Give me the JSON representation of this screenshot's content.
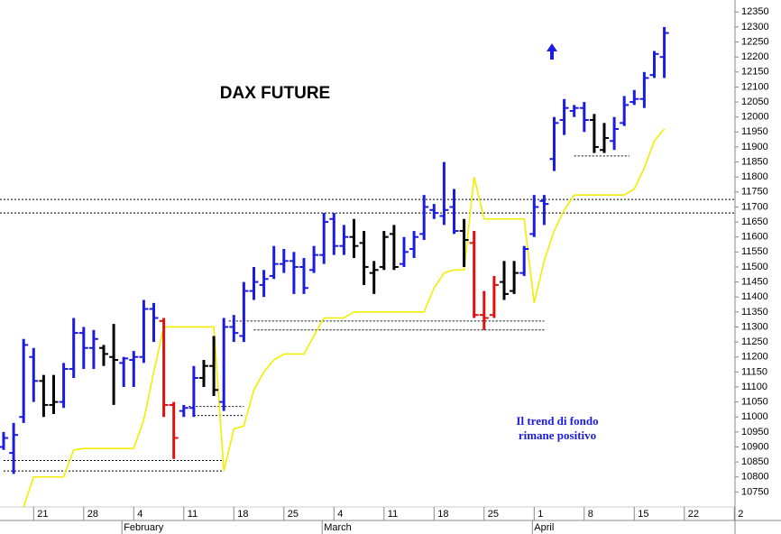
{
  "chart_data": {
    "type": "ohlc",
    "title": "DAX FUTURE",
    "annotation": [
      "Il trend di fondo",
      "rimane positivo"
    ],
    "categories": [
      null,
      null,
      null,
      "21",
      null,
      null,
      null,
      null,
      "28",
      null,
      null,
      null,
      null,
      "4",
      null,
      null,
      null,
      null,
      "11",
      null,
      null,
      null,
      null,
      "18",
      null,
      null,
      null,
      null,
      "25",
      null,
      null,
      null,
      null,
      "4",
      null,
      null,
      null,
      null,
      "11",
      null,
      null,
      null,
      null,
      "18",
      null,
      null,
      null,
      null,
      "25",
      null,
      null,
      null,
      null,
      "1",
      null,
      null,
      null,
      null,
      "8",
      null,
      null,
      null,
      null,
      "15",
      null,
      null,
      null,
      null,
      "22",
      null,
      null,
      null,
      null,
      "2"
    ],
    "months": [
      {
        "label": "February",
        "at": 12
      },
      {
        "label": "March",
        "at": 32
      },
      {
        "label": "April",
        "at": 53
      }
    ],
    "ohlc": {
      "open": [
        10900,
        10880,
        11000,
        11200,
        11120,
        11040,
        11050,
        11160,
        11280,
        11230,
        11230,
        11200,
        11180,
        11190,
        11200,
        11360,
        11320,
        11040,
        11020,
        11030,
        11130,
        11170,
        11050,
        11300,
        11270,
        11420,
        11440,
        11470,
        11510,
        11520,
        11500,
        11490,
        11540,
        11660,
        11570,
        11600,
        11580,
        11480,
        11500,
        11610,
        11510,
        11560,
        11610,
        11690,
        11670,
        11700,
        11620,
        11580,
        11340,
        11340,
        11450,
        11420,
        11480,
        11610,
        11720,
        11860,
        11990,
        12020,
        12030,
        11990,
        11890,
        11920,
        11980,
        12050,
        12060,
        12140,
        12200,
        null,
        null,
        null,
        null,
        null,
        null,
        null
      ],
      "high": [
        10950,
        10980,
        11260,
        11230,
        11140,
        11140,
        11180,
        11330,
        11300,
        11290,
        11240,
        11310,
        11200,
        11220,
        11390,
        11380,
        11330,
        11050,
        11040,
        11170,
        11190,
        11270,
        11330,
        11340,
        11450,
        11500,
        11490,
        11570,
        11560,
        11550,
        11530,
        11570,
        11680,
        11680,
        11640,
        11660,
        11620,
        11520,
        11620,
        11640,
        11600,
        11620,
        11740,
        11710,
        11850,
        11760,
        11660,
        11620,
        11420,
        11470,
        11520,
        11520,
        11570,
        11740,
        11740,
        12000,
        12060,
        12040,
        12050,
        12010,
        11980,
        12000,
        12070,
        12090,
        12150,
        12220,
        12300,
        null,
        null,
        null,
        null,
        null,
        null,
        null
      ],
      "low": [
        10890,
        10810,
        10980,
        11050,
        11000,
        11010,
        11030,
        11130,
        11160,
        11160,
        11170,
        11040,
        11100,
        11100,
        11180,
        11250,
        11000,
        10860,
        11000,
        11000,
        11100,
        11070,
        11020,
        11250,
        11250,
        11390,
        11400,
        11460,
        11480,
        11410,
        11410,
        11480,
        11510,
        11540,
        11540,
        11530,
        11440,
        11410,
        11490,
        11490,
        11500,
        11530,
        11590,
        11660,
        11640,
        11610,
        11500,
        11330,
        11290,
        11330,
        11390,
        11410,
        11470,
        11600,
        11640,
        11820,
        11940,
        12000,
        11950,
        11880,
        11880,
        11890,
        11970,
        12040,
        12030,
        12130,
        12130,
        null,
        null,
        null,
        null,
        null,
        null,
        null
      ],
      "close": [
        10930,
        10940,
        11240,
        11120,
        11040,
        11050,
        11160,
        11280,
        11230,
        11260,
        11210,
        11190,
        11195,
        11200,
        11360,
        11330,
        11040,
        10930,
        11030,
        11130,
        11170,
        11090,
        11300,
        11280,
        11420,
        11450,
        11460,
        11510,
        11520,
        11500,
        11430,
        11540,
        11650,
        11570,
        11600,
        11570,
        11500,
        11490,
        11600,
        11500,
        11550,
        11600,
        11700,
        11680,
        11690,
        11620,
        11590,
        11340,
        11330,
        11440,
        11410,
        11480,
        11560,
        11700,
        11710,
        11980,
        12030,
        12030,
        11990,
        11900,
        11930,
        11960,
        12040,
        12060,
        12130,
        12210,
        12280,
        null,
        null,
        null,
        null,
        null,
        null,
        null
      ],
      "colors": [
        "#1c1ce0",
        "#1c1ce0",
        "#1c1ce0",
        "#1c1ce0",
        "#000000",
        "#000000",
        "#1c1ce0",
        "#1c1ce0",
        "#1c1ce0",
        "#1c1ce0",
        "#000000",
        "#000000",
        "#1c1ce0",
        "#1c1ce0",
        "#1c1ce0",
        "#1c1ce0",
        "#e01010",
        "#e01010",
        "#1c1ce0",
        "#1c1ce0",
        "#000000",
        "#000000",
        "#1c1ce0",
        "#1c1ce0",
        "#1c1ce0",
        "#1c1ce0",
        "#1c1ce0",
        "#1c1ce0",
        "#1c1ce0",
        "#1c1ce0",
        "#1c1ce0",
        "#1c1ce0",
        "#1c1ce0",
        "#1c1ce0",
        "#1c1ce0",
        "#000000",
        "#000000",
        "#000000",
        "#000000",
        "#000000",
        "#1c1ce0",
        "#1c1ce0",
        "#1c1ce0",
        "#1c1ce0",
        "#1c1ce0",
        "#1c1ce0",
        "#000000",
        "#e01010",
        "#e01010",
        "#e01010",
        "#000000",
        "#000000",
        "#1c1ce0",
        "#1c1ce0",
        "#1c1ce0",
        "#1c1ce0",
        "#1c1ce0",
        "#1c1ce0",
        "#1c1ce0",
        "#000000",
        "#000000",
        "#1c1ce0",
        "#1c1ce0",
        "#1c1ce0",
        "#1c1ce0",
        "#1c1ce0",
        "#1c1ce0",
        null,
        null,
        null,
        null,
        null,
        null,
        null
      ]
    },
    "line": {
      "color": "#f2ee00",
      "values": [
        null,
        null,
        10700,
        10800,
        10800,
        10800,
        10800,
        10890,
        10895,
        10895,
        10895,
        10895,
        10895,
        10895,
        10990,
        11150,
        11300,
        11300,
        11300,
        11300,
        11300,
        11300,
        10820,
        10960,
        10970,
        11090,
        11150,
        11190,
        11210,
        11210,
        11210,
        11270,
        11330,
        11330,
        11330,
        11350,
        11350,
        11350,
        11350,
        11350,
        11350,
        11350,
        11350,
        11430,
        11480,
        11490,
        11490,
        11800,
        11660,
        11660,
        11660,
        11660,
        11660,
        11380,
        11520,
        11620,
        11690,
        11740,
        11740,
        11740,
        11740,
        11740,
        11740,
        11760,
        11830,
        11920,
        11960,
        null,
        null,
        null,
        null,
        null,
        null,
        null
      ]
    },
    "levels": [
      {
        "value": 11725
      },
      {
        "value": 11680
      },
      {
        "value": 11320,
        "from": 22.5,
        "to": 54
      },
      {
        "value": 11290,
        "from": 25,
        "to": 54
      },
      {
        "value": 11035,
        "from": 18.5,
        "to": 24
      },
      {
        "value": 11005,
        "from": 19,
        "to": 24
      },
      {
        "value": 10855,
        "from": 0,
        "to": 22
      },
      {
        "value": 10820,
        "from": 0,
        "to": 22
      },
      {
        "value": 11870,
        "from": 57,
        "to": 62.5
      }
    ],
    "ylim": [
      10700,
      12390
    ],
    "yticks": [
      10750,
      10800,
      10850,
      10900,
      10950,
      11000,
      11050,
      11100,
      11150,
      11200,
      11250,
      11300,
      11350,
      11400,
      11450,
      11500,
      11550,
      11600,
      11650,
      11700,
      11750,
      11800,
      11850,
      11900,
      11950,
      12000,
      12050,
      12100,
      12150,
      12200,
      12250,
      12300,
      12350
    ]
  }
}
